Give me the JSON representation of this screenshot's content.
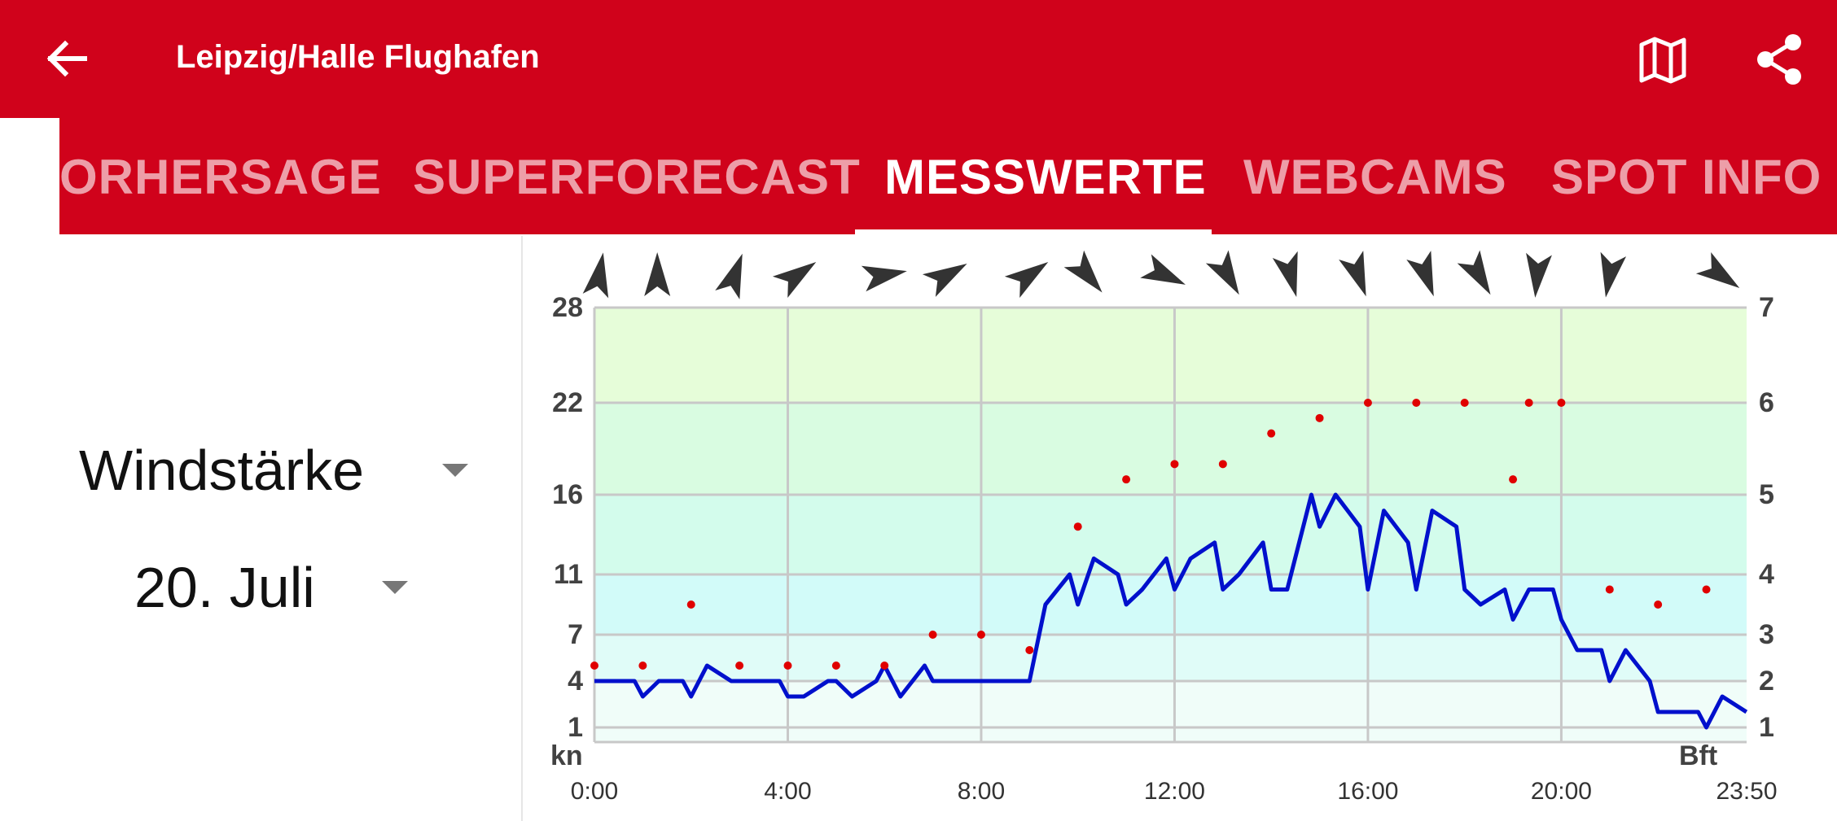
{
  "app": {
    "title": "Leipzig/Halle Flughafen",
    "accent_color": "#d0021b",
    "icons": [
      "back-arrow-icon",
      "map-icon",
      "share-icon"
    ]
  },
  "tabs": [
    {
      "label": "ORHERSAGE",
      "active": false
    },
    {
      "label": "SUPERFORECAST",
      "active": false
    },
    {
      "label": "MESSWERTE",
      "active": true
    },
    {
      "label": "WEBCAMS",
      "active": false
    },
    {
      "label": "SPOT INFO",
      "active": false
    }
  ],
  "filters": {
    "measure": "Windstärke",
    "date": "20. Juli"
  },
  "chart_data": {
    "type": "line",
    "left_unit": "kn",
    "right_unit": "Bft",
    "y_ticks_left": [
      1,
      4,
      7,
      11,
      16,
      22,
      28
    ],
    "y_ticks_right": [
      1,
      2,
      3,
      4,
      5,
      6,
      7
    ],
    "x_ticks": [
      "0:00",
      "4:00",
      "8:00",
      "12:00",
      "16:00",
      "20:00",
      "23:50"
    ],
    "x_range_hours": [
      0,
      23.833
    ],
    "series": [
      {
        "color": "#0010cc",
        "points": [
          [
            0,
            4
          ],
          [
            0.83,
            4
          ],
          [
            1,
            3
          ],
          [
            1.33,
            4
          ],
          [
            1.83,
            4
          ],
          [
            2,
            3
          ],
          [
            2.33,
            5
          ],
          [
            2.83,
            4
          ],
          [
            3.17,
            4
          ],
          [
            3.83,
            4
          ],
          [
            4,
            3
          ],
          [
            4.33,
            3
          ],
          [
            4.83,
            4
          ],
          [
            5,
            4
          ],
          [
            5.33,
            3
          ],
          [
            5.83,
            4
          ],
          [
            6,
            5
          ],
          [
            6.33,
            3
          ],
          [
            6.83,
            5
          ],
          [
            7,
            4
          ],
          [
            7.83,
            4
          ],
          [
            8.33,
            4
          ],
          [
            9,
            4
          ],
          [
            9.33,
            9
          ],
          [
            9.83,
            11
          ],
          [
            10,
            9
          ],
          [
            10.33,
            12
          ],
          [
            10.83,
            11
          ],
          [
            11,
            9
          ],
          [
            11.33,
            10
          ],
          [
            11.83,
            12
          ],
          [
            12,
            10
          ],
          [
            12.33,
            12
          ],
          [
            12.83,
            13
          ],
          [
            13,
            10
          ],
          [
            13.33,
            11
          ],
          [
            13.83,
            13
          ],
          [
            14,
            10
          ],
          [
            14.33,
            10
          ],
          [
            14.83,
            16
          ],
          [
            15,
            14
          ],
          [
            15.33,
            16
          ],
          [
            15.83,
            14
          ],
          [
            16,
            10
          ],
          [
            16.33,
            15
          ],
          [
            16.83,
            13
          ],
          [
            17,
            10
          ],
          [
            17.33,
            15
          ],
          [
            17.83,
            14
          ],
          [
            18,
            10
          ],
          [
            18.33,
            9
          ],
          [
            18.83,
            10
          ],
          [
            19,
            8
          ],
          [
            19.33,
            10
          ],
          [
            19.83,
            10
          ],
          [
            20,
            8
          ],
          [
            20.33,
            6
          ],
          [
            20.83,
            6
          ],
          [
            21,
            4
          ],
          [
            21.33,
            6
          ],
          [
            21.83,
            4
          ],
          [
            22,
            2
          ],
          [
            22.33,
            2
          ],
          [
            22.83,
            2
          ],
          [
            23,
            1
          ],
          [
            23.33,
            3
          ],
          [
            23.83,
            2
          ]
        ]
      },
      {
        "color": "#e00000",
        "points": [
          [
            0,
            5
          ],
          [
            1,
            5
          ],
          [
            2,
            9
          ],
          [
            3,
            5
          ],
          [
            4,
            5
          ],
          [
            5,
            5
          ],
          [
            6,
            5
          ],
          [
            7,
            7
          ],
          [
            8,
            7
          ],
          [
            9,
            6
          ],
          [
            10,
            14
          ],
          [
            11,
            17
          ],
          [
            12,
            18
          ],
          [
            13,
            18
          ],
          [
            14,
            20
          ],
          [
            15,
            21
          ],
          [
            16,
            22
          ],
          [
            17,
            22
          ],
          [
            18,
            22
          ],
          [
            19,
            17
          ],
          [
            19.33,
            22
          ],
          [
            20,
            22
          ],
          [
            21,
            10
          ],
          [
            22,
            9
          ],
          [
            23,
            10
          ]
        ]
      }
    ],
    "wind_directions": [
      {
        "time": 0.1,
        "deg": 10
      },
      {
        "time": 1.3,
        "deg": 0
      },
      {
        "time": 2.9,
        "deg": 20
      },
      {
        "time": 4.2,
        "deg": 55
      },
      {
        "time": 6.0,
        "deg": 80
      },
      {
        "time": 7.3,
        "deg": 60
      },
      {
        "time": 9.0,
        "deg": 55
      },
      {
        "time": 10.2,
        "deg": 140
      },
      {
        "time": 11.8,
        "deg": 115
      },
      {
        "time": 13.1,
        "deg": 150
      },
      {
        "time": 14.4,
        "deg": 165
      },
      {
        "time": 15.8,
        "deg": 160
      },
      {
        "time": 17.2,
        "deg": 160
      },
      {
        "time": 18.3,
        "deg": 150
      },
      {
        "time": 19.5,
        "deg": 185
      },
      {
        "time": 21.0,
        "deg": 190
      },
      {
        "time": 23.3,
        "deg": 125
      }
    ],
    "bands": [
      "#f0fdf9",
      "#e0fcf8",
      "#d2fbf9",
      "#d3fcec",
      "#d9fce1",
      "#e6fdd9"
    ],
    "grid": true
  }
}
